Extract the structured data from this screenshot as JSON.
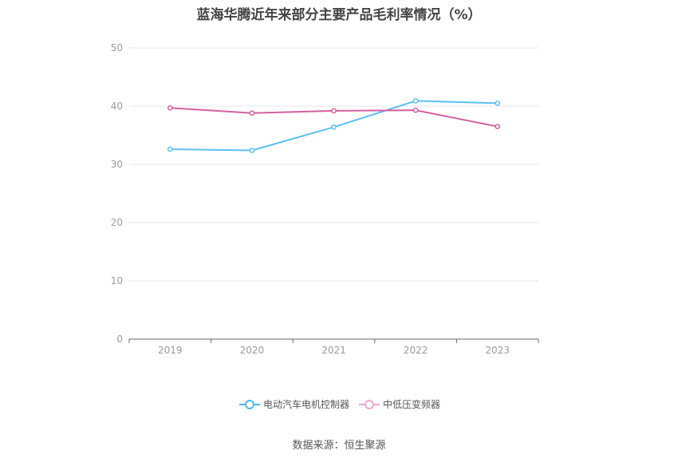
{
  "title": "蓝海华腾近年来部分主要产品毛利率情况（%）",
  "source": "数据来源：恒生聚源",
  "chart_data": {
    "type": "line",
    "title": "蓝海华腾近年来部分主要产品毛利率情况（%）",
    "categories": [
      "2019",
      "2020",
      "2021",
      "2022",
      "2023"
    ],
    "series": [
      {
        "name": "电动汽车电机控制器",
        "color": "#5bc0f0",
        "values": [
          32.6,
          32.4,
          36.4,
          40.9,
          40.5
        ]
      },
      {
        "name": "中低压变频器",
        "color": "#d45fa0",
        "values": [
          39.7,
          38.8,
          39.2,
          39.3,
          36.5
        ]
      }
    ],
    "ylim": [
      0,
      50
    ],
    "yticks": [
      0,
      10,
      20,
      30,
      40,
      50
    ],
    "grid": true,
    "legend": "bottom-center",
    "xlabel": "",
    "ylabel": ""
  }
}
